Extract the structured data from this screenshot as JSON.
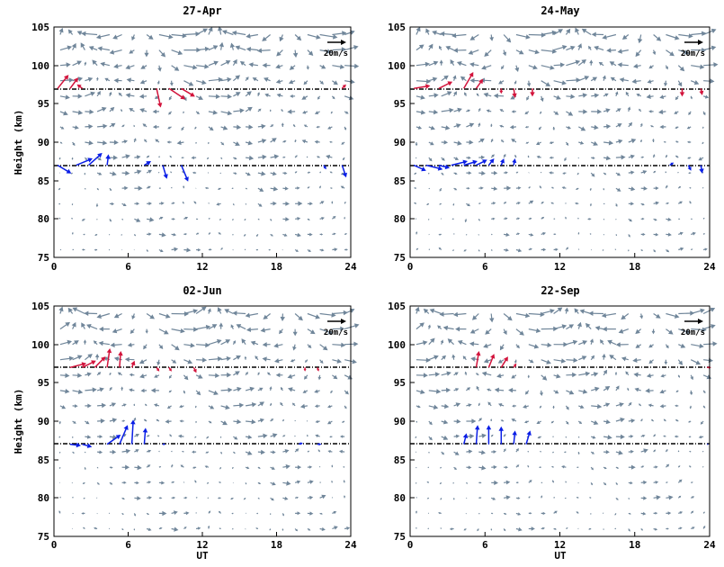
{
  "figure": {
    "ylabel": "Height (km)",
    "xlabel": "UT",
    "scale_arrow_label": "20m/s"
  },
  "colors": {
    "wind": "#70869a",
    "upper_highlight": "#d2143c",
    "lower_highlight": "#0a1ee6",
    "frame": "#000000"
  },
  "chart_data": [
    {
      "type": "quiver",
      "title": "27-Apr",
      "xlim": [
        0,
        24
      ],
      "ylim": [
        75,
        105
      ],
      "xticks": [
        "0",
        "6",
        "12",
        "18",
        "24"
      ],
      "yticks": [
        "75",
        "80",
        "85",
        "90",
        "95",
        "100",
        "105"
      ],
      "ref_lines_km": [
        97,
        87
      ],
      "grid": false,
      "seed": 11,
      "upper_highlights": [
        {
          "t": 0.0,
          "u": 8,
          "v": 10
        },
        {
          "t": 1.0,
          "u": 6,
          "v": 8
        },
        {
          "t": 2.0,
          "u": -4,
          "v": 3
        },
        {
          "t": 8.0,
          "u": 3,
          "v": -14
        },
        {
          "t": 9.0,
          "u": 12,
          "v": -8
        },
        {
          "t": 10.0,
          "u": 10,
          "v": -6
        },
        {
          "t": 23.0,
          "u": 3,
          "v": 3
        }
      ],
      "lower_highlights": [
        {
          "t": 0.0,
          "u": 10,
          "v": -6
        },
        {
          "t": 1.5,
          "u": 12,
          "v": 5
        },
        {
          "t": 2.5,
          "u": 10,
          "v": 9
        },
        {
          "t": 4.0,
          "u": 1,
          "v": 8
        },
        {
          "t": 7.0,
          "u": 5,
          "v": 3
        },
        {
          "t": 8.5,
          "u": 3,
          "v": -10
        },
        {
          "t": 10.0,
          "u": 5,
          "v": -12
        },
        {
          "t": 21.5,
          "u": 2,
          "v": -3
        },
        {
          "t": 23.0,
          "u": 3,
          "v": -9
        }
      ]
    },
    {
      "type": "quiver",
      "title": "24-May",
      "xlim": [
        0,
        24
      ],
      "ylim": [
        75,
        105
      ],
      "xticks": [
        "0",
        "6",
        "12",
        "18",
        "24"
      ],
      "yticks": [
        "75",
        "80",
        "85",
        "90",
        "95",
        "100",
        "105"
      ],
      "ref_lines_km": [
        97,
        87
      ],
      "grid": false,
      "seed": 23,
      "upper_highlights": [
        {
          "t": 0.0,
          "u": 12,
          "v": 2
        },
        {
          "t": 2.0,
          "u": 10,
          "v": 5
        },
        {
          "t": 4.0,
          "u": 7,
          "v": 12
        },
        {
          "t": 5.0,
          "u": 5,
          "v": 7
        },
        {
          "t": 7.0,
          "u": 0,
          "v": -4
        },
        {
          "t": 8.0,
          "u": 1,
          "v": -7
        },
        {
          "t": 9.5,
          "u": 0,
          "v": -6
        },
        {
          "t": 21.5,
          "u": 0,
          "v": -6
        },
        {
          "t": 23.0,
          "u": 1,
          "v": -5
        }
      ],
      "lower_highlights": [
        {
          "t": 0.0,
          "u": 9,
          "v": -4
        },
        {
          "t": 1.0,
          "u": 12,
          "v": -3
        },
        {
          "t": 2.0,
          "u": 8,
          "v": -2
        },
        {
          "t": 3.0,
          "u": 12,
          "v": 3
        },
        {
          "t": 4.0,
          "u": 10,
          "v": 3
        },
        {
          "t": 5.0,
          "u": 8,
          "v": 4
        },
        {
          "t": 6.0,
          "u": 4,
          "v": 5
        },
        {
          "t": 7.0,
          "u": 2,
          "v": 5
        },
        {
          "t": 8.0,
          "u": 1,
          "v": 5
        },
        {
          "t": 20.5,
          "u": 3,
          "v": 2
        },
        {
          "t": 22.0,
          "u": 2,
          "v": -4
        },
        {
          "t": 23.0,
          "u": 1,
          "v": -6
        }
      ]
    },
    {
      "type": "quiver",
      "title": "02-Jun",
      "xlim": [
        0,
        24
      ],
      "ylim": [
        75,
        105
      ],
      "xticks": [
        "0",
        "6",
        "12",
        "18",
        "24"
      ],
      "yticks": [
        "75",
        "80",
        "85",
        "90",
        "95",
        "100",
        "105"
      ],
      "ref_lines_km": [
        97,
        87
      ],
      "grid": false,
      "seed": 37,
      "upper_highlights": [
        {
          "t": 1.0,
          "u": 12,
          "v": 3
        },
        {
          "t": 2.0,
          "u": 10,
          "v": 5
        },
        {
          "t": 3.0,
          "u": 8,
          "v": 8
        },
        {
          "t": 4.0,
          "u": 2,
          "v": 14
        },
        {
          "t": 5.0,
          "u": 1,
          "v": 12
        },
        {
          "t": 6.0,
          "u": 2,
          "v": 5
        },
        {
          "t": 8.0,
          "u": 2,
          "v": -3
        },
        {
          "t": 9.0,
          "u": 2,
          "v": -3
        },
        {
          "t": 11.0,
          "u": 2,
          "v": -4
        },
        {
          "t": 20.0,
          "u": 0,
          "v": -3
        },
        {
          "t": 21.0,
          "u": 1,
          "v": -3
        }
      ],
      "lower_highlights": [
        {
          "t": 1.0,
          "u": 8,
          "v": -1
        },
        {
          "t": 2.0,
          "u": 7,
          "v": -2
        },
        {
          "t": 4.0,
          "u": 10,
          "v": 7
        },
        {
          "t": 5.0,
          "u": 6,
          "v": 14
        },
        {
          "t": 6.0,
          "u": 1,
          "v": 18
        },
        {
          "t": 7.0,
          "u": 1,
          "v": 12
        },
        {
          "t": 8.5,
          "u": 2,
          "v": 0
        },
        {
          "t": 19.5,
          "u": 3,
          "v": 1
        },
        {
          "t": 21.0,
          "u": 3,
          "v": 0
        }
      ]
    },
    {
      "type": "quiver",
      "title": "22-Sep",
      "xlim": [
        0,
        24
      ],
      "ylim": [
        75,
        105
      ],
      "xticks": [
        "0",
        "6",
        "12",
        "18",
        "24"
      ],
      "yticks": [
        "75",
        "80",
        "85",
        "90",
        "95",
        "100",
        "105"
      ],
      "ref_lines_km": [
        97,
        87
      ],
      "grid": false,
      "seed": 53,
      "upper_highlights": [
        {
          "t": 5.0,
          "u": 2,
          "v": 12
        },
        {
          "t": 6.0,
          "u": 4,
          "v": 10
        },
        {
          "t": 7.0,
          "u": 5,
          "v": 8
        },
        {
          "t": 8.0,
          "u": 2,
          "v": 3
        },
        {
          "t": 23.5,
          "u": 3,
          "v": 0
        }
      ],
      "lower_highlights": [
        {
          "t": 4.0,
          "u": 2,
          "v": 8
        },
        {
          "t": 5.0,
          "u": 1,
          "v": 14
        },
        {
          "t": 6.0,
          "u": 0,
          "v": 14
        },
        {
          "t": 7.0,
          "u": 0,
          "v": 13
        },
        {
          "t": 8.0,
          "u": 1,
          "v": 10
        },
        {
          "t": 9.0,
          "u": 3,
          "v": 10
        },
        {
          "t": 23.5,
          "u": 1,
          "v": 0
        }
      ]
    }
  ]
}
